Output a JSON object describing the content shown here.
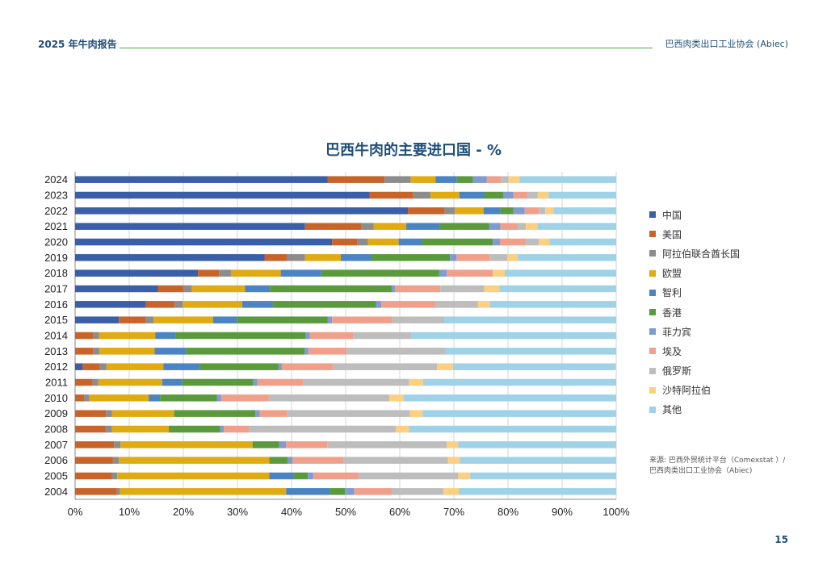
{
  "header": {
    "left": "2025 年牛肉报告",
    "right": "巴西肉类出口工业协会 (Abiec)"
  },
  "page_number": "15",
  "source": {
    "line1": "来源: 巴西外贸统计平台（Comexstat ）/",
    "line2": "巴西肉类出口工业协会（Abiec)"
  },
  "colors": [
    "#3a5ea8",
    "#c8642a",
    "#8c8c8c",
    "#e0aa12",
    "#4b83c3",
    "#5a9a3c",
    "#7f9bd0",
    "#f0a08a",
    "#bdbdbd",
    "#fcd080",
    "#9fd2e6"
  ],
  "chart_data": {
    "type": "bar",
    "orientation": "horizontal",
    "stacked": true,
    "title": "巴西牛肉的主要进口国 - %",
    "categories": [
      "2024",
      "2023",
      "2022",
      "2021",
      "2020",
      "2019",
      "2018",
      "2017",
      "2016",
      "2015",
      "2014",
      "2013",
      "2012",
      "2011",
      "2010",
      "2009",
      "2008",
      "2007",
      "2006",
      "2005",
      "2004"
    ],
    "x_ticks": [
      "0%",
      "10%",
      "20%",
      "30%",
      "40%",
      "50%",
      "60%",
      "70%",
      "80%",
      "90%",
      "100%"
    ],
    "xlim": [
      0,
      100
    ],
    "grid": true,
    "legend_position": "right",
    "series": [
      {
        "name": "中国",
        "values": [
          46.7,
          54.4,
          61.5,
          42.5,
          47.5,
          35.0,
          22.7,
          15.3,
          13.1,
          8.1,
          0,
          0,
          1.4,
          0,
          0,
          0,
          0,
          0,
          0,
          0,
          0
        ]
      },
      {
        "name": "美国",
        "values": [
          10.5,
          8.1,
          6.8,
          10.4,
          4.7,
          4.1,
          3.9,
          4.8,
          5.3,
          5.0,
          3.3,
          3.3,
          3.2,
          3.2,
          1.7,
          5.7,
          5.6,
          7.2,
          7.0,
          6.8,
          7.7
        ]
      },
      {
        "name": "阿拉伯联合酋长国",
        "values": [
          4.8,
          3.2,
          1.9,
          2.3,
          1.9,
          3.4,
          2.2,
          1.5,
          1.5,
          1.4,
          1.1,
          1.2,
          1.2,
          1.1,
          0.9,
          1.1,
          1.2,
          1.2,
          1.1,
          1.0,
          0.6
        ]
      },
      {
        "name": "欧盟",
        "values": [
          4.6,
          5.3,
          5.3,
          6.0,
          5.7,
          6.6,
          9.2,
          9.8,
          11.0,
          11.0,
          10.4,
          10.2,
          10.5,
          11.8,
          11.0,
          11.5,
          10.5,
          24.4,
          27.8,
          28.1,
          30.7
        ]
      },
      {
        "name": "智利",
        "values": [
          3.9,
          4.6,
          3.1,
          6.2,
          4.3,
          5.6,
          7.5,
          4.6,
          5.6,
          4.4,
          3.8,
          5.8,
          6.7,
          3.7,
          2.1,
          0,
          0,
          0,
          0,
          4.4,
          8.1
        ]
      },
      {
        "name": "香港",
        "values": [
          3.0,
          3.5,
          2.4,
          9.1,
          13.1,
          14.6,
          21.8,
          22.5,
          19.1,
          16.8,
          24.0,
          21.9,
          14.6,
          13.1,
          10.5,
          15.0,
          9.5,
          4.9,
          3.4,
          2.7,
          2.8
        ]
      },
      {
        "name": "菲力宾",
        "values": [
          2.6,
          1.9,
          2.1,
          2.1,
          1.3,
          1.2,
          1.4,
          0.6,
          1.0,
          0.8,
          0.8,
          0.7,
          0.6,
          0.8,
          0.8,
          0.8,
          0.7,
          1.3,
          0.9,
          1.0,
          1.7
        ]
      },
      {
        "name": "埃及",
        "values": [
          2.6,
          2.6,
          2.6,
          3.2,
          4.8,
          6.1,
          8.5,
          8.4,
          10.1,
          11.1,
          8.0,
          7.1,
          9.4,
          8.5,
          8.8,
          5.1,
          4.6,
          7.6,
          9.4,
          8.4,
          6.9
        ]
      },
      {
        "name": "俄罗斯",
        "values": [
          1.4,
          1.9,
          1.2,
          1.5,
          2.4,
          3.3,
          0,
          8.1,
          7.7,
          9.6,
          10.8,
          18.3,
          19.3,
          19.5,
          22.3,
          22.7,
          27.2,
          22.1,
          19.3,
          18.4,
          9.6
        ]
      },
      {
        "name": "沙特阿拉伯",
        "values": [
          2.0,
          2.0,
          1.5,
          2.1,
          2.0,
          1.9,
          2.2,
          2.8,
          2.3,
          0,
          0,
          0,
          2.9,
          2.6,
          2.6,
          2.3,
          2.4,
          2.1,
          2.2,
          2.2,
          2.8
        ]
      },
      {
        "name": "其他",
        "values": [
          17.9,
          12.5,
          11.6,
          14.6,
          12.3,
          18.2,
          20.6,
          21.6,
          23.3,
          31.8,
          37.8,
          31.5,
          30.1,
          35.7,
          39.3,
          35.8,
          38.3,
          29.2,
          28.9,
          27.0,
          29.1
        ]
      }
    ]
  }
}
